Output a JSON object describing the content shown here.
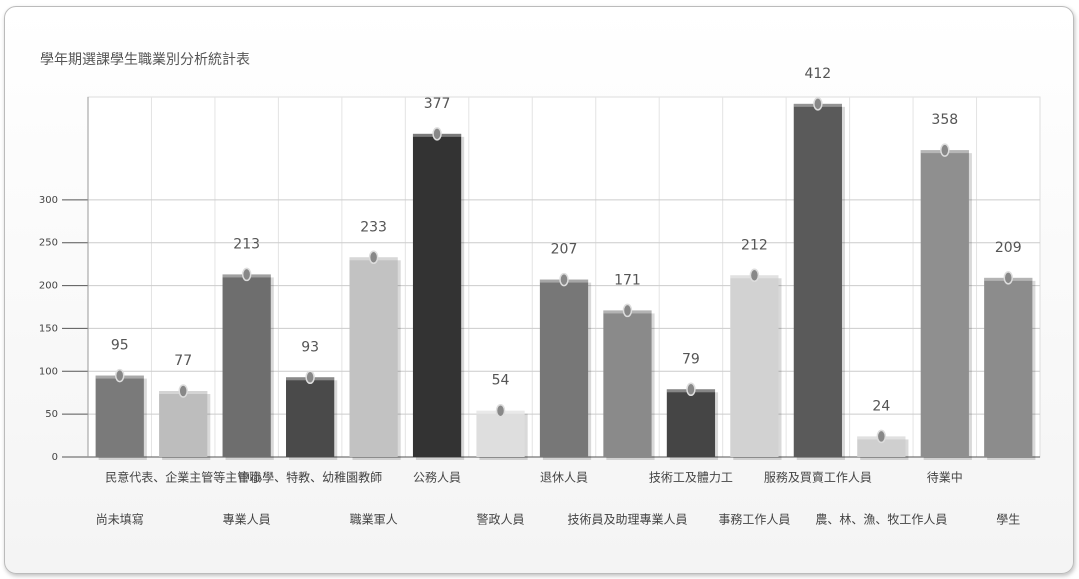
{
  "chart_data": {
    "type": "bar",
    "title": "學年期選課學生職業別分析統計表",
    "categories": [
      "尚未填寫",
      "民意代表、企業主管等主管職",
      "專業人員",
      "中小學、特教、幼稚園教師",
      "職業軍人",
      "公務人員",
      "警政人員",
      "退休人員",
      "技術員及助理專業人員",
      "技術工及體力工",
      "事務工作人員",
      "服務及買賣工作人員",
      "農、林、漁、牧工作人員",
      "待業中",
      "學生"
    ],
    "values": [
      95,
      77,
      213,
      93,
      233,
      377,
      54,
      207,
      171,
      79,
      212,
      412,
      24,
      358,
      209
    ],
    "colors": [
      "#7a7a7a",
      "#bdbdbd",
      "#6e6e6e",
      "#4a4a4a",
      "#c2c2c2",
      "#333333",
      "#dedede",
      "#777777",
      "#8a8a8a",
      "#454545",
      "#d2d2d2",
      "#5a5a5a",
      "#cfcfcf",
      "#8f8f8f",
      "#8c8c8c"
    ],
    "ylim": [
      0,
      420
    ],
    "yticks": [
      0,
      50,
      100,
      150,
      200,
      250,
      300
    ],
    "grid": true
  }
}
